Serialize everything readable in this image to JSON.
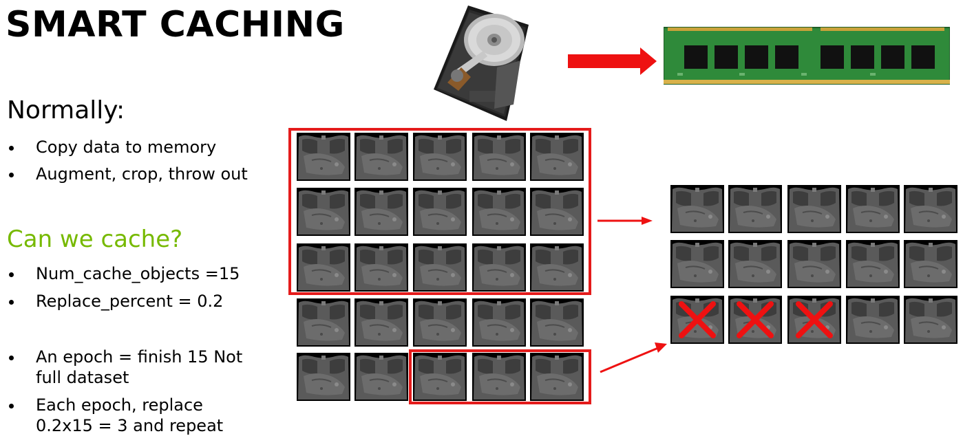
{
  "title": "SMART CACHING",
  "section_normally": {
    "heading": "Normally:",
    "items": [
      "Copy data to memory",
      "Augment, crop, throw out"
    ]
  },
  "section_cache": {
    "heading": "Can we cache?",
    "params": [
      "Num_cache_objects =15",
      "Replace_percent = 0.2"
    ],
    "notes": [
      "An epoch = finish 15 Not full dataset",
      "Each epoch, replace 0.2x15 = 3 and repeat"
    ]
  },
  "colors": {
    "accent_green": "#76b900",
    "highlight_red": "#e41b1b",
    "arrow_red": "#ee1111"
  },
  "icons": {
    "storage": "hard-drive-icon",
    "memory": "ram-module-icon",
    "scan": "ct-scan-thumbnail",
    "replace": "x-mark-icon"
  },
  "dataset_grid": {
    "rows": 5,
    "cols": 5
  },
  "cache_grid": {
    "rows": 3,
    "cols": 5,
    "replaced": 3
  }
}
